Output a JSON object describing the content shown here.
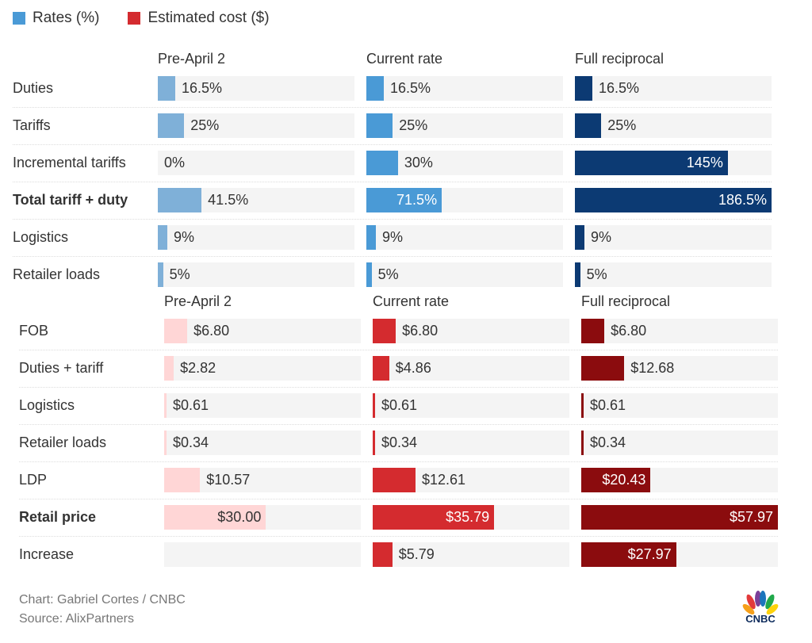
{
  "legend": [
    {
      "label": "Rates (%)",
      "color": "#4a9ad6"
    },
    {
      "label": "Estimated cost ($)",
      "color": "#d42b2f"
    }
  ],
  "chart_data": [
    {
      "type": "bar",
      "orientation": "horizontal",
      "columns": [
        "Pre-April 2",
        "Current rate",
        "Full reciprocal"
      ],
      "categories": [
        "Duties",
        "Tariffs",
        "Incremental tariffs",
        "Total tariff + duty",
        "Logistics",
        "Retailer loads"
      ],
      "bold_categories": [
        "Total tariff + duty"
      ],
      "unit": "%",
      "max": 186.5,
      "colors": [
        "#7fb0d8",
        "#4a9ad6",
        "#0c3a73"
      ],
      "series": [
        {
          "name": "Pre-April 2",
          "values": [
            16.5,
            25,
            0,
            41.5,
            9,
            5
          ],
          "labels": [
            "16.5%",
            "25%",
            "0%",
            "41.5%",
            "9%",
            "5%"
          ]
        },
        {
          "name": "Current rate",
          "values": [
            16.5,
            25,
            30,
            71.5,
            9,
            5
          ],
          "labels": [
            "16.5%",
            "25%",
            "30%",
            "71.5%",
            "9%",
            "5%"
          ]
        },
        {
          "name": "Full reciprocal",
          "values": [
            16.5,
            25,
            145,
            186.5,
            9,
            5
          ],
          "labels": [
            "16.5%",
            "25%",
            "145%",
            "186.5%",
            "9%",
            "5%"
          ]
        }
      ]
    },
    {
      "type": "bar",
      "orientation": "horizontal",
      "columns": [
        "Pre-April 2",
        "Current rate",
        "Full reciprocal"
      ],
      "categories": [
        "FOB",
        "Duties + tariff",
        "Logistics",
        "Retailer loads",
        "LDP",
        "Retail price",
        "Increase"
      ],
      "bold_categories": [
        "Retail price"
      ],
      "unit": "$",
      "max": 57.97,
      "colors": [
        "#ffd6d6",
        "#d42b2f",
        "#8b0c0e"
      ],
      "inside_text_colors": [
        "#333333",
        "#ffffff",
        "#ffffff"
      ],
      "series": [
        {
          "name": "Pre-April 2",
          "values": [
            6.8,
            2.82,
            0.61,
            0.34,
            10.57,
            30.0,
            null
          ],
          "labels": [
            "$6.80",
            "$2.82",
            "$0.61",
            "$0.34",
            "$10.57",
            "$30.00",
            ""
          ]
        },
        {
          "name": "Current rate",
          "values": [
            6.8,
            4.86,
            0.61,
            0.34,
            12.61,
            35.79,
            5.79
          ],
          "labels": [
            "$6.80",
            "$4.86",
            "$0.61",
            "$0.34",
            "$12.61",
            "$35.79",
            "$5.79"
          ]
        },
        {
          "name": "Full reciprocal",
          "values": [
            6.8,
            12.68,
            0.61,
            0.34,
            20.43,
            57.97,
            27.97
          ],
          "labels": [
            "$6.80",
            "$12.68",
            "$0.61",
            "$0.34",
            "$20.43",
            "$57.97",
            "$27.97"
          ]
        }
      ]
    }
  ],
  "footer": {
    "credit": "Chart: Gabriel Cortes / CNBC",
    "source": "Source: AlixPartners",
    "logo_text": "CNBC"
  }
}
